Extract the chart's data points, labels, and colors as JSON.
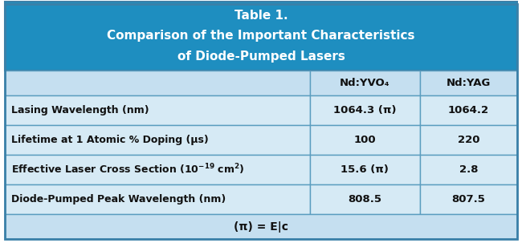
{
  "title_line1": "Table 1.",
  "title_line2": "Comparison of the Important Characteristics",
  "title_line3": "of Diode-Pumped Lasers",
  "header_bg": "#1e8ec0",
  "header_text_color": "#ffffff",
  "cell_bg_light": "#d6eaf5",
  "cell_bg_medium": "#c5dff0",
  "footer_bg": "#c5dff0",
  "border_color": "#5a9dbf",
  "text_color": "#111111",
  "col_headers": [
    "Nd:YVO₄",
    "Nd:YAG"
  ],
  "row_labels": [
    "Lasing Wavelength (nm)",
    "Lifetime at 1 Atomic % Doping (μs)",
    "Effective Laser Cross Section (10⁻¹⁹ cm²)",
    "Diode-Pumped Peak Wavelength (nm)"
  ],
  "col1_values": [
    "1064.3 (π)",
    "100",
    "15.6 (π)",
    "808.5"
  ],
  "col2_values": [
    "1064.2",
    "220",
    "2.8",
    "807.5"
  ],
  "footer_text": "(π) = E|c",
  "fig_width": 6.5,
  "fig_height": 3.03,
  "dpi": 100
}
